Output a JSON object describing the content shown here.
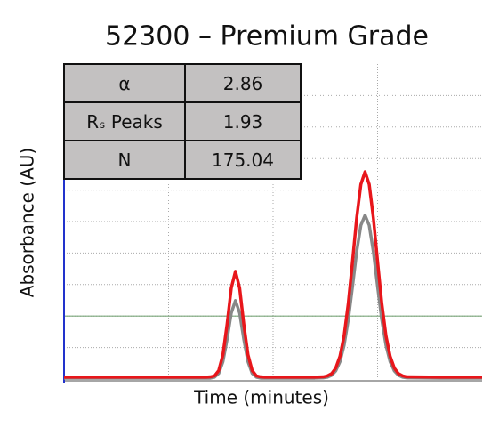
{
  "chart_data": {
    "type": "line",
    "title": "52300 – Premium Grade",
    "x_label": "Time (minutes)",
    "y_label": "Absorbance (AU)",
    "x": [
      0,
      30,
      34,
      35,
      36,
      37,
      38,
      39,
      40,
      41,
      42,
      43,
      44,
      45,
      46,
      47,
      48,
      55,
      60,
      62,
      63,
      64,
      65,
      66,
      67,
      68,
      69,
      70,
      71,
      72,
      73,
      74,
      75,
      76,
      77,
      78,
      79,
      80,
      81,
      82,
      90,
      100
    ],
    "series": [
      {
        "color": "#888888",
        "values": [
          0.3,
          0.3,
          0.3,
          0.3,
          0.6,
          1.8,
          5.5,
          12.6,
          21.0,
          24.9,
          21.0,
          12.6,
          5.5,
          1.8,
          0.6,
          0.3,
          0.3,
          0.3,
          0.3,
          0.4,
          0.6,
          1.2,
          2.6,
          5.5,
          10.8,
          18.9,
          29.4,
          40.4,
          48.8,
          52.0,
          48.8,
          40.4,
          29.4,
          18.9,
          10.8,
          5.5,
          2.6,
          1.2,
          0.6,
          0.4,
          0.3,
          0.3
        ]
      },
      {
        "color": "#e8161b",
        "values": [
          0.6,
          0.6,
          0.6,
          0.7,
          1.0,
          2.7,
          7.7,
          17.4,
          28.9,
          34.2,
          28.9,
          17.4,
          7.7,
          2.7,
          1.0,
          0.7,
          0.6,
          0.6,
          0.6,
          0.7,
          1.0,
          1.7,
          3.5,
          7.2,
          13.8,
          24.1,
          37.3,
          51.1,
          61.8,
          65.8,
          61.8,
          51.1,
          37.3,
          24.1,
          13.8,
          7.2,
          3.5,
          1.7,
          1.0,
          0.7,
          0.6,
          0.6
        ]
      }
    ],
    "xlim": [
      0,
      100
    ],
    "ylim": [
      0,
      100
    ],
    "xticks": [
      25,
      50,
      75
    ],
    "yticks": [
      10,
      20,
      30,
      40,
      50,
      60,
      70,
      80,
      90
    ],
    "grid": true,
    "hline": {
      "value": 20,
      "color": "#7aa67a"
    },
    "table": {
      "rows": [
        [
          "α",
          "2.86"
        ],
        [
          "Rₛ Peaks",
          "1.93"
        ],
        [
          "N",
          "175.04"
        ]
      ]
    }
  }
}
